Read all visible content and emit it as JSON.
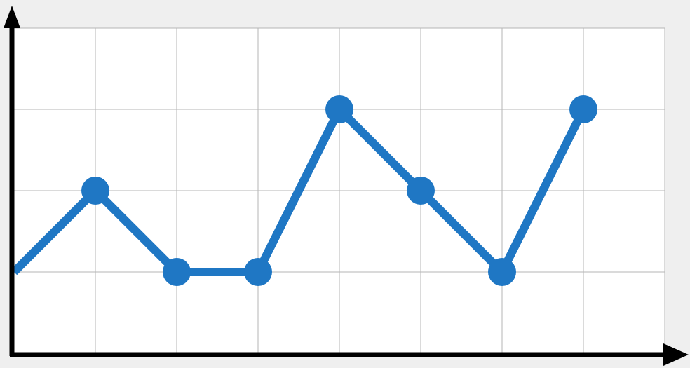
{
  "colors": {
    "background": "#efefef",
    "plot_background": "#ffffff",
    "grid": "#b5b5b5",
    "axis": "#000000",
    "series": "#1f77c4"
  },
  "chart_data": {
    "type": "line",
    "title": "",
    "xlabel": "",
    "ylabel": "",
    "grid": true,
    "legend": "none",
    "axis_arrows": true,
    "xlim": [
      0,
      8
    ],
    "ylim": [
      0,
      4
    ],
    "x": [
      0,
      1,
      2,
      3,
      4,
      5,
      6,
      7
    ],
    "series": [
      {
        "values": [
          1,
          2,
          1,
          1,
          3,
          2,
          1,
          3
        ],
        "markers": [
          false,
          true,
          true,
          true,
          true,
          true,
          true,
          true
        ]
      }
    ]
  }
}
